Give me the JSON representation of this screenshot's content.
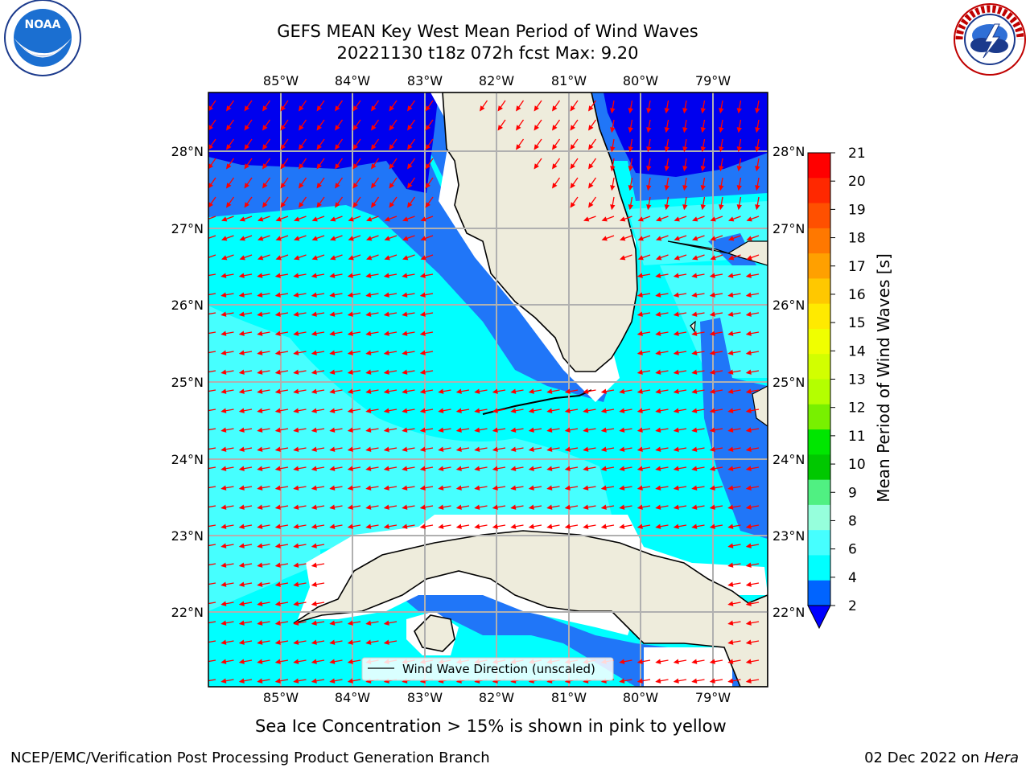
{
  "header": {
    "title_line1": "GEFS MEAN Key West Mean Period of Wind Waves",
    "title_line2": "20221130 t18z 072h fcst   Max: 9.20"
  },
  "logos": {
    "left": {
      "name": "NOAA",
      "text": "NOAA"
    },
    "right": {
      "name": "National Weather Service",
      "text": "NATIONAL WEATHER SERVICE"
    }
  },
  "map": {
    "lon_labels": [
      "85°W",
      "84°W",
      "83°W",
      "82°W",
      "81°W",
      "80°W",
      "79°W"
    ],
    "lat_labels": [
      "28°N",
      "27°N",
      "26°N",
      "25°N",
      "24°N",
      "23°N",
      "22°N"
    ],
    "legend_label": "Wind Wave Direction (unscaled)",
    "colors": {
      "land": "#eeecdc",
      "coast": "#000000",
      "grid": "#b0b0b0",
      "arrow": "#ff0000"
    }
  },
  "colorbar": {
    "label": "Mean Period of Wind Waves [s]",
    "ticks": [
      "21",
      "20",
      "19",
      "18",
      "17",
      "16",
      "15",
      "14",
      "13",
      "12",
      "11",
      "10",
      "9",
      "8",
      "6",
      "4",
      "2"
    ],
    "colors": [
      "#ff0000",
      "#ff2800",
      "#ff5000",
      "#ff7800",
      "#ffa000",
      "#ffc800",
      "#ffea00",
      "#f0ff00",
      "#d2ff00",
      "#b4ff00",
      "#78f000",
      "#00e600",
      "#00c800",
      "#50f082",
      "#96ffdc",
      "#46ffff",
      "#00ffff",
      "#0064ff"
    ],
    "extend_color": "#0000ff"
  },
  "footer": {
    "note": "Sea Ice Concentration > 15% is shown in pink to yellow",
    "left": "NCEP/EMC/Verification Post Processing Product Generation Branch",
    "date": "02 Dec 2022 on",
    "machine": "Hera"
  }
}
